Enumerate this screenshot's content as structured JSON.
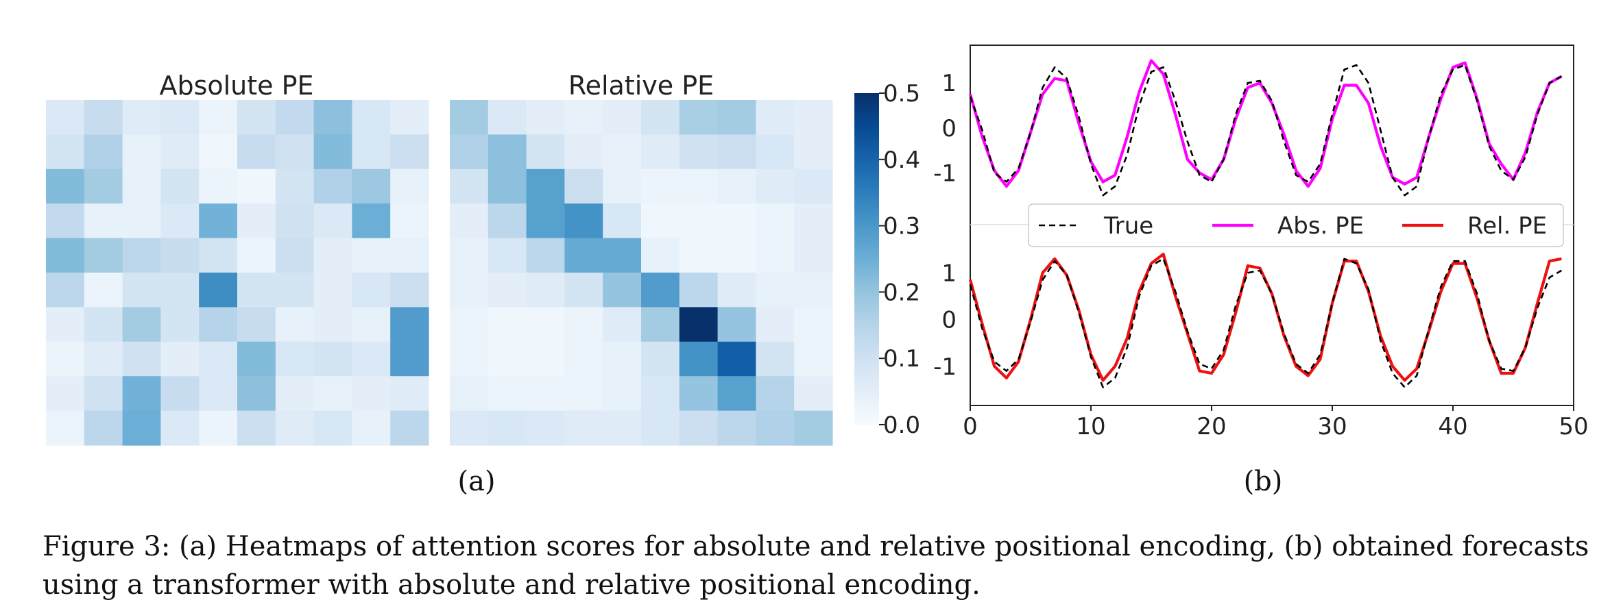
{
  "figure": {
    "caption": "Figure 3: (a) Heatmaps of attention scores for absolute and relative positional encoding, (b) obtained forecasts using a transformer with absolute and relative positional encoding.",
    "subfigure_a_label": "(a)",
    "subfigure_b_label": "(b)"
  },
  "colors": {
    "low": "#f7fbff",
    "high": "#08306b",
    "true": "#000000",
    "abs": "#ff00ff",
    "rel": "#ee1111"
  },
  "chart_data": [
    {
      "type": "heatmap",
      "title": "Absolute PE",
      "rows": 10,
      "cols": 10,
      "vmin": 0.0,
      "vmax": 0.5,
      "values": [
        [
          0.07,
          0.12,
          0.06,
          0.07,
          0.03,
          0.09,
          0.13,
          0.21,
          0.08,
          0.05
        ],
        [
          0.09,
          0.16,
          0.04,
          0.06,
          0.02,
          0.12,
          0.1,
          0.22,
          0.08,
          0.11
        ],
        [
          0.22,
          0.18,
          0.04,
          0.09,
          0.03,
          0.02,
          0.09,
          0.16,
          0.19,
          0.04
        ],
        [
          0.13,
          0.04,
          0.04,
          0.07,
          0.24,
          0.05,
          0.1,
          0.07,
          0.25,
          0.03
        ],
        [
          0.22,
          0.18,
          0.14,
          0.12,
          0.09,
          0.03,
          0.11,
          0.05,
          0.04,
          0.04
        ],
        [
          0.14,
          0.03,
          0.09,
          0.09,
          0.32,
          0.09,
          0.09,
          0.05,
          0.08,
          0.11
        ],
        [
          0.05,
          0.09,
          0.18,
          0.09,
          0.15,
          0.12,
          0.04,
          0.05,
          0.04,
          0.29
        ],
        [
          0.03,
          0.06,
          0.1,
          0.05,
          0.07,
          0.22,
          0.08,
          0.09,
          0.07,
          0.29
        ],
        [
          0.05,
          0.1,
          0.24,
          0.12,
          0.07,
          0.21,
          0.05,
          0.04,
          0.05,
          0.06
        ],
        [
          0.03,
          0.14,
          0.25,
          0.07,
          0.03,
          0.11,
          0.06,
          0.08,
          0.04,
          0.14
        ]
      ],
      "colorbar": {
        "ticks": [
          0.0,
          0.1,
          0.2,
          0.3,
          0.4,
          0.5
        ],
        "tick_labels": [
          "0.0",
          "0.1",
          "0.2",
          "0.3",
          "0.4",
          "0.5"
        ]
      }
    },
    {
      "type": "heatmap",
      "title": "Relative PE",
      "rows": 10,
      "cols": 10,
      "vmin": 0.0,
      "vmax": 0.5,
      "values": [
        [
          0.18,
          0.07,
          0.05,
          0.04,
          0.05,
          0.09,
          0.17,
          0.18,
          0.06,
          0.05
        ],
        [
          0.16,
          0.21,
          0.09,
          0.05,
          0.04,
          0.06,
          0.1,
          0.11,
          0.08,
          0.05
        ],
        [
          0.09,
          0.21,
          0.28,
          0.11,
          0.04,
          0.03,
          0.03,
          0.04,
          0.06,
          0.07
        ],
        [
          0.05,
          0.14,
          0.28,
          0.31,
          0.08,
          0.02,
          0.02,
          0.02,
          0.03,
          0.05
        ],
        [
          0.04,
          0.08,
          0.14,
          0.26,
          0.26,
          0.04,
          0.02,
          0.02,
          0.03,
          0.05
        ],
        [
          0.04,
          0.05,
          0.06,
          0.09,
          0.2,
          0.29,
          0.14,
          0.06,
          0.04,
          0.04
        ],
        [
          0.03,
          0.02,
          0.02,
          0.03,
          0.06,
          0.18,
          0.5,
          0.2,
          0.05,
          0.03
        ],
        [
          0.03,
          0.02,
          0.02,
          0.03,
          0.04,
          0.09,
          0.31,
          0.41,
          0.09,
          0.03
        ],
        [
          0.04,
          0.03,
          0.03,
          0.03,
          0.04,
          0.08,
          0.2,
          0.28,
          0.15,
          0.05
        ],
        [
          0.07,
          0.08,
          0.07,
          0.06,
          0.06,
          0.08,
          0.11,
          0.14,
          0.16,
          0.18
        ]
      ]
    },
    {
      "type": "line",
      "x_ticks": [
        0,
        10,
        20,
        30,
        40,
        50
      ],
      "y_ticks": [
        -1,
        0,
        1
      ],
      "xlim": [
        0,
        50
      ],
      "legend": [
        "True",
        "Abs. PE",
        "Rel. PE"
      ],
      "legend_placement": "center",
      "x": [
        0,
        1,
        2,
        3,
        4,
        5,
        6,
        7,
        8,
        9,
        10,
        11,
        12,
        13,
        14,
        15,
        16,
        17,
        18,
        19,
        20,
        21,
        22,
        23,
        24,
        25,
        26,
        27,
        28,
        29,
        30,
        31,
        32,
        33,
        34,
        35,
        36,
        37,
        38,
        39,
        40,
        41,
        42,
        43,
        44,
        45,
        46,
        47,
        48,
        49
      ],
      "panels": [
        {
          "name": "top",
          "ylim": [
            -2.0,
            1.75
          ],
          "series": [
            {
              "name": "True",
              "style": "dashed",
              "values": [
                0.7,
                -0.05,
                -1.0,
                -1.2,
                -0.9,
                -0.1,
                0.9,
                1.35,
                1.1,
                0.25,
                -0.8,
                -1.5,
                -1.3,
                -0.6,
                0.5,
                1.25,
                1.35,
                0.6,
                -0.3,
                -1.05,
                -1.2,
                -0.7,
                0.3,
                1.0,
                1.05,
                0.6,
                -0.3,
                -1.05,
                -1.2,
                -0.8,
                0.3,
                1.3,
                1.4,
                1.0,
                -0.05,
                -1.1,
                -1.5,
                -1.3,
                -0.2,
                0.75,
                1.3,
                1.4,
                0.6,
                -0.4,
                -0.95,
                -1.15,
                -0.65,
                0.3,
                1.0,
                1.15
              ]
            },
            {
              "name": "Abs. PE",
              "style": "solid",
              "values": [
                0.75,
                -0.2,
                -0.95,
                -1.3,
                -0.95,
                -0.1,
                0.75,
                1.1,
                1.05,
                0.1,
                -0.75,
                -1.2,
                -1.05,
                -0.2,
                0.8,
                1.5,
                1.2,
                0.3,
                -0.7,
                -1.0,
                -1.15,
                -0.7,
                0.2,
                0.9,
                1.0,
                0.55,
                -0.15,
                -0.95,
                -1.3,
                -0.9,
                0.2,
                0.95,
                0.95,
                0.55,
                -0.4,
                -1.1,
                -1.25,
                -1.1,
                -0.2,
                0.65,
                1.35,
                1.45,
                0.65,
                -0.35,
                -0.8,
                -1.15,
                -0.55,
                0.35,
                1.0,
                1.15
              ]
            }
          ]
        },
        {
          "name": "bottom",
          "ylim": [
            -1.75,
            2.0
          ],
          "series": [
            {
              "name": "True",
              "style": "dashed",
              "values": [
                0.75,
                -0.2,
                -0.9,
                -1.1,
                -0.85,
                -0.05,
                0.85,
                1.25,
                0.95,
                0.15,
                -0.8,
                -1.45,
                -1.25,
                -0.6,
                0.5,
                1.15,
                1.3,
                0.6,
                -0.25,
                -0.95,
                -1.05,
                -0.65,
                0.3,
                1.0,
                1.05,
                0.55,
                -0.3,
                -0.95,
                -1.15,
                -0.75,
                0.35,
                1.3,
                1.2,
                0.65,
                -0.45,
                -1.15,
                -1.45,
                -1.2,
                -0.2,
                0.7,
                1.25,
                1.25,
                0.55,
                -0.45,
                -1.05,
                -1.1,
                -0.6,
                0.25,
                0.9,
                1.05
              ]
            },
            {
              "name": "Rel. PE",
              "style": "solid",
              "values": [
                0.85,
                -0.1,
                -1.0,
                -1.25,
                -0.9,
                0.0,
                1.0,
                1.3,
                0.95,
                0.2,
                -0.75,
                -1.3,
                -1.0,
                -0.4,
                0.6,
                1.2,
                1.4,
                0.5,
                -0.3,
                -1.1,
                -1.15,
                -0.75,
                0.15,
                1.15,
                1.1,
                0.55,
                -0.35,
                -1.0,
                -1.2,
                -0.85,
                0.35,
                1.25,
                1.25,
                0.6,
                -0.35,
                -1.0,
                -1.3,
                -1.05,
                -0.25,
                0.6,
                1.2,
                1.2,
                0.45,
                -0.45,
                -1.15,
                -1.15,
                -0.6,
                0.35,
                1.25,
                1.3
              ]
            }
          ]
        }
      ]
    }
  ]
}
